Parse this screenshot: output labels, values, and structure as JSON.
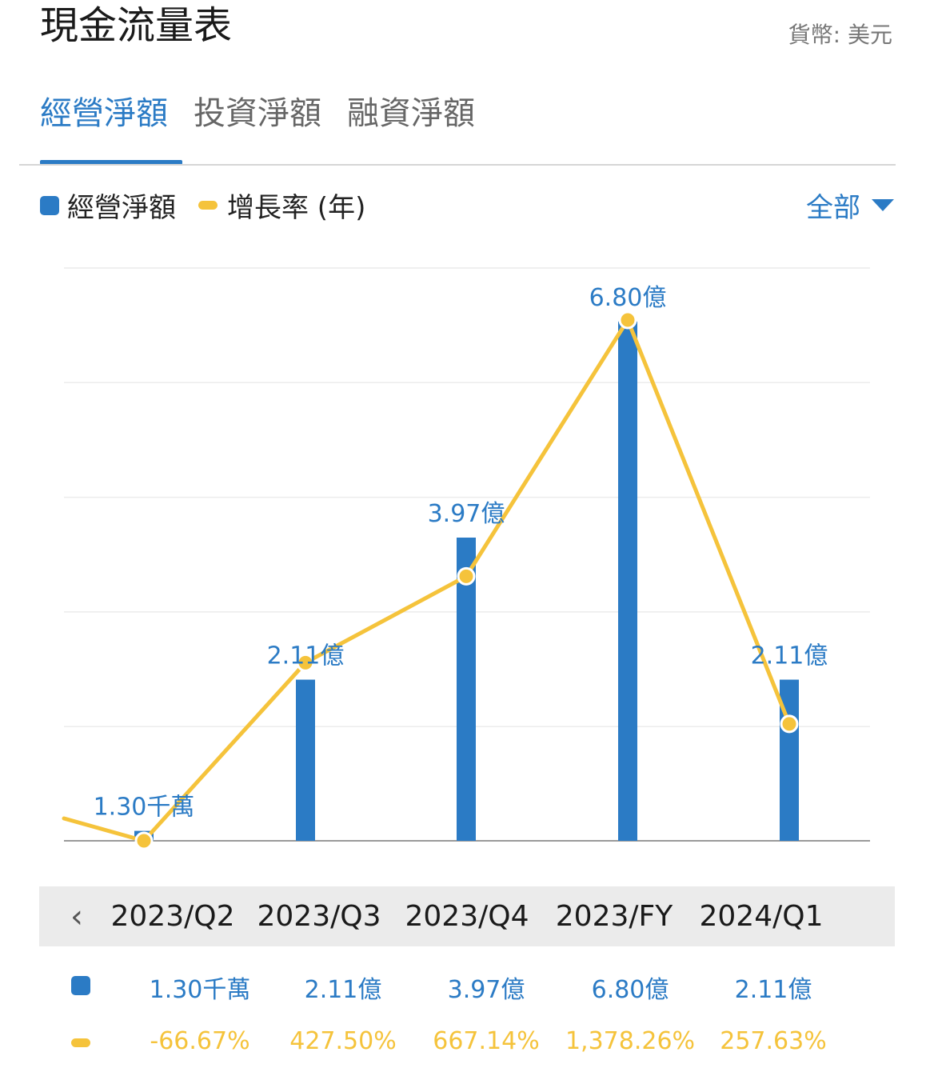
{
  "header": {
    "title": "現金流量表",
    "currency": "貨幣: 美元"
  },
  "tabs": [
    {
      "label": "經營淨額",
      "active": true
    },
    {
      "label": "投資淨額",
      "active": false
    },
    {
      "label": "融資淨額",
      "active": false
    }
  ],
  "legend": {
    "bar_label": "經營淨額",
    "line_label": "增長率 (年)"
  },
  "filter": {
    "label": "全部"
  },
  "colors": {
    "accent": "#2b7bc5",
    "line": "#f5c33b"
  },
  "chart_data": {
    "type": "bar",
    "categories": [
      "2023/Q2",
      "2023/Q3",
      "2023/Q4",
      "2023/FY",
      "2024/Q1"
    ],
    "series": [
      {
        "name": "經營淨額",
        "type": "bar",
        "values": [
          0.13,
          2.11,
          3.97,
          6.8,
          2.11
        ],
        "data_labels": [
          "1.30千萬",
          "2.11億",
          "3.97億",
          "6.80億",
          "2.11億"
        ]
      },
      {
        "name": "增長率 (年)",
        "type": "line",
        "values": [
          -66.67,
          427.5,
          667.14,
          1378.26,
          257.63
        ],
        "data_labels": [
          "-66.67%",
          "427.50%",
          "667.14%",
          "1,378.26%",
          "257.63%"
        ]
      }
    ],
    "grid": true,
    "legend_position": "top-left"
  }
}
